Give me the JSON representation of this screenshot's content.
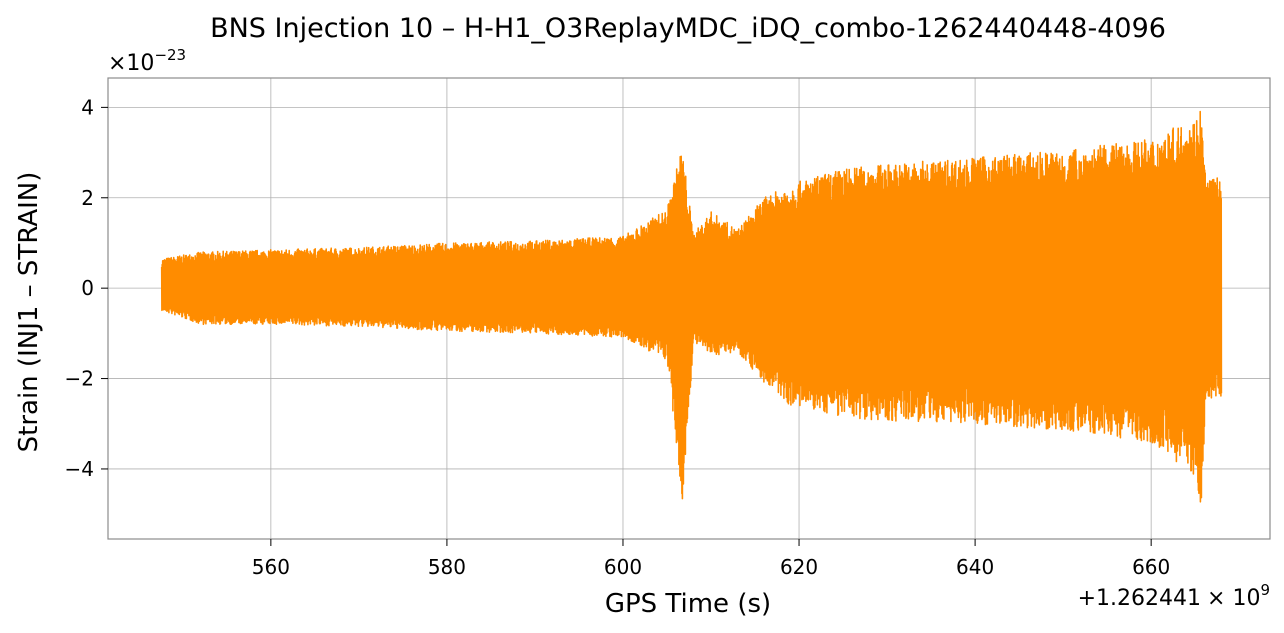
{
  "chart_data": {
    "type": "line",
    "title": "BNS Injection 10 – H-H1_O3ReplayMDC_iDQ_combo-1262440448-4096",
    "xlabel": "GPS Time (s)",
    "ylabel": "Strain (INJ1 – STRAIN)",
    "x_offset_label": "+1.262441",
    "x_offset_exp_base": "× 10",
    "x_offset_exp": "9",
    "y_scale_base": "×10",
    "y_scale_exp": "−23",
    "xlim": [
      1262441541.5,
      1262441673.5
    ],
    "ylim": [
      -5.55,
      4.65
    ],
    "x_ticks": [
      {
        "value": 1262441560,
        "label": "560"
      },
      {
        "value": 1262441580,
        "label": "580"
      },
      {
        "value": 1262441600,
        "label": "600"
      },
      {
        "value": 1262441620,
        "label": "620"
      },
      {
        "value": 1262441640,
        "label": "640"
      },
      {
        "value": 1262441660,
        "label": "660"
      }
    ],
    "y_ticks": [
      {
        "value": 4,
        "label": "4"
      },
      {
        "value": 2,
        "label": "2"
      },
      {
        "value": 0,
        "label": "0"
      },
      {
        "value": -2,
        "label": "−2"
      },
      {
        "value": -4,
        "label": "−4"
      }
    ],
    "grid": true,
    "series": [
      {
        "color": "#ff8c00",
        "x_start": 1262441547.6,
        "x_end": 1262441668.0,
        "envelope": [
          {
            "x": 1262441547.6,
            "max": 0.65,
            "min": -0.5
          },
          {
            "x": 1262441552,
            "max": 0.8,
            "min": -0.8
          },
          {
            "x": 1262441560,
            "max": 0.85,
            "min": -0.8
          },
          {
            "x": 1262441570,
            "max": 0.9,
            "min": -0.85
          },
          {
            "x": 1262441580,
            "max": 1.0,
            "min": -0.95
          },
          {
            "x": 1262441590,
            "max": 1.05,
            "min": -1.0
          },
          {
            "x": 1262441600,
            "max": 1.15,
            "min": -1.1
          },
          {
            "x": 1262441605,
            "max": 1.75,
            "min": -1.6
          },
          {
            "x": 1262441606.7,
            "max": 3.15,
            "min": -4.8
          },
          {
            "x": 1262441608,
            "max": 1.2,
            "min": -1.2
          },
          {
            "x": 1262441610,
            "max": 1.7,
            "min": -1.5
          },
          {
            "x": 1262441613,
            "max": 1.3,
            "min": -1.4
          },
          {
            "x": 1262441616,
            "max": 2.0,
            "min": -2.1
          },
          {
            "x": 1262441619,
            "max": 2.3,
            "min": -2.6
          },
          {
            "x": 1262441625,
            "max": 2.65,
            "min": -2.85
          },
          {
            "x": 1262441630,
            "max": 2.75,
            "min": -2.95
          },
          {
            "x": 1262441640,
            "max": 2.9,
            "min": -3.0
          },
          {
            "x": 1262441650,
            "max": 3.05,
            "min": -3.15
          },
          {
            "x": 1262441660,
            "max": 3.3,
            "min": -3.4
          },
          {
            "x": 1262441665.2,
            "max": 3.8,
            "min": -4.2
          },
          {
            "x": 1262441665.6,
            "max": 4.15,
            "min": -5.1
          },
          {
            "x": 1262441666.2,
            "max": 2.45,
            "min": -2.5
          },
          {
            "x": 1262441668.0,
            "max": 2.45,
            "min": -2.4
          }
        ]
      }
    ]
  }
}
